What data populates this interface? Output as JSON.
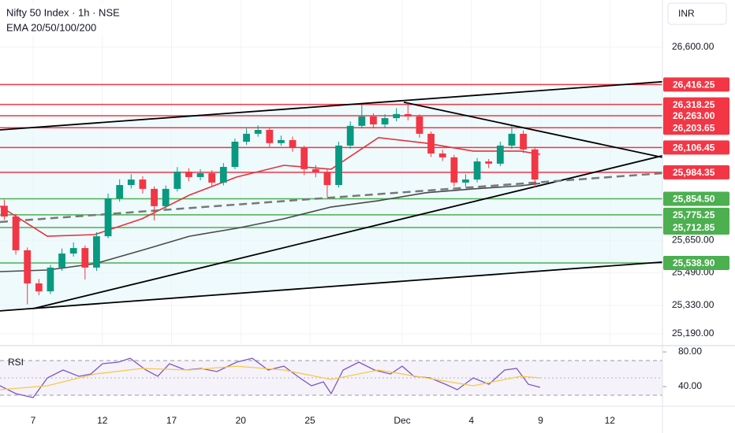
{
  "chart_data": [
    {
      "type": "candlestick",
      "title": "Nifty 50 Index · 1h · NSE",
      "subtitle": "EMA 20/50/100/200",
      "currency": "INR",
      "up_color": "#089981",
      "down_color": "#f23645",
      "x": [
        -1.25,
        -0.75,
        -0.25,
        0.25,
        0.75,
        1.25,
        1.75,
        2.25,
        2.75,
        3.25,
        3.75,
        4.25,
        4.75,
        5.25,
        5.75,
        6.25,
        6.75,
        7.25,
        7.75,
        8.25,
        8.75,
        9.25,
        9.75,
        10.25,
        10.75,
        11.25,
        11.75,
        12.25,
        12.75,
        13.25,
        13.75,
        14.25,
        14.75,
        15.25,
        15.75,
        16.25,
        16.75,
        17.25,
        17.75,
        18.25,
        18.75,
        19.25,
        19.75,
        20.25,
        20.75,
        21.25,
        21.75
      ],
      "open": [
        25820,
        25767,
        25601,
        25438,
        25399,
        25516,
        25585,
        25612,
        25516,
        25670,
        25856,
        25922,
        25949,
        25903,
        25818,
        25903,
        25988,
        25961,
        25980,
        25934,
        26011,
        26135,
        26174,
        26193,
        26128,
        26143,
        26104,
        26000,
        25985,
        25922,
        26116,
        26213,
        26259,
        26220,
        26251,
        26271,
        26259,
        26174,
        26077,
        26058,
        25934,
        25949,
        26038,
        26027,
        26116,
        26174,
        26097
      ],
      "high": [
        25850,
        25780,
        25615,
        25460,
        25530,
        25610,
        25640,
        25625,
        25690,
        25880,
        25950,
        25975,
        25965,
        25915,
        25920,
        26010,
        26005,
        26000,
        25995,
        26030,
        26150,
        26200,
        26215,
        26205,
        26165,
        26160,
        26115,
        26020,
        26000,
        26135,
        26235,
        26317,
        26275,
        26270,
        26300,
        26325,
        26270,
        26185,
        26095,
        26070,
        25975,
        26055,
        26050,
        26135,
        26213,
        26190,
        26110
      ],
      "low": [
        25750,
        25580,
        25335,
        25380,
        25385,
        25500,
        25570,
        25457,
        25500,
        25660,
        25840,
        25905,
        25880,
        25748,
        25800,
        25890,
        25940,
        25945,
        25915,
        25920,
        26000,
        26120,
        26160,
        26110,
        26115,
        26085,
        25970,
        25960,
        25864,
        25910,
        26100,
        26200,
        26200,
        26205,
        26235,
        26240,
        26155,
        26060,
        26040,
        25915,
        25915,
        25935,
        26005,
        26015,
        26100,
        26080,
        25911
      ],
      "close": [
        25767,
        25601,
        25438,
        25399,
        25516,
        25585,
        25612,
        25516,
        25670,
        25856,
        25922,
        25949,
        25903,
        25818,
        25903,
        25988,
        25961,
        25980,
        25934,
        26011,
        26135,
        26174,
        26193,
        26128,
        26143,
        26104,
        26000,
        25985,
        25922,
        26116,
        26213,
        26259,
        26220,
        26251,
        26271,
        26259,
        26174,
        26077,
        26058,
        25934,
        25949,
        26038,
        26027,
        26116,
        26174,
        26097,
        25949
      ],
      "xlim": [
        -1.436,
        27.282
      ],
      "ylim": [
        25136,
        26832
      ],
      "xticks": [
        {
          "value": 0,
          "label": "7"
        },
        {
          "value": 3,
          "label": "12"
        },
        {
          "value": 6,
          "label": "17"
        },
        {
          "value": 9,
          "label": "20"
        },
        {
          "value": 12,
          "label": "25"
        },
        {
          "value": 16,
          "label": "Dec"
        },
        {
          "value": 19,
          "label": "4"
        },
        {
          "value": 22,
          "label": "9"
        },
        {
          "value": 25,
          "label": "12"
        }
      ],
      "yticks": [
        {
          "value": 26600,
          "label": "26,600.00"
        },
        {
          "value": 25650,
          "label": "25,650.00"
        },
        {
          "value": 25490,
          "label": "25,490.00"
        },
        {
          "value": 25330,
          "label": "25,330.00"
        },
        {
          "value": 25190,
          "label": "25,190.00"
        }
      ],
      "grid": true,
      "overlays": [
        {
          "color": "#e5323e",
          "x": [
            -1.44,
            0.62,
            2.67,
            4.72,
            6.77,
            8.82,
            10.87,
            12.92,
            14.97,
            17.03,
            19.08,
            21.13,
            21.98
          ],
          "values": [
            25818,
            25670,
            25678,
            25756,
            25872,
            25961,
            26019,
            26000,
            26155,
            26128,
            26089,
            26089,
            26073
          ]
        },
        {
          "color": "#4a4a4a",
          "x": [
            -1.44,
            0.62,
            2.67,
            4.72,
            6.77,
            8.82,
            10.87,
            12.92,
            14.97,
            17.03,
            19.08,
            21.13,
            21.98
          ],
          "values": [
            25496,
            25504,
            25535,
            25601,
            25670,
            25709,
            25756,
            25814,
            25845,
            25884,
            25903,
            25918,
            25930
          ]
        }
      ],
      "levels": [
        {
          "value": 26416.25,
          "label": "26,416.25",
          "color": "#f23645"
        },
        {
          "value": 26318.25,
          "label": "26,318.25",
          "color": "#f23645"
        },
        {
          "value": 26263.0,
          "label": "26,263.00",
          "color": "#f23645"
        },
        {
          "value": 26203.65,
          "label": "26,203.65",
          "color": "#f23645"
        },
        {
          "value": 26106.45,
          "label": "26,106.45",
          "color": "#f23645"
        },
        {
          "value": 25984.35,
          "label": "25,984.35",
          "color": "#f23645"
        },
        {
          "value": 25854.5,
          "label": "25,854.50",
          "color": "#4caf50"
        },
        {
          "value": 25775.25,
          "label": "25,775.25",
          "color": "#4caf50"
        },
        {
          "value": 25712.85,
          "label": "25,712.85",
          "color": "#4caf50"
        },
        {
          "value": 25538.9,
          "label": "25,538.90",
          "color": "#4caf50"
        }
      ],
      "trendlines": [
        {
          "x": [
            -1.436,
            27.282
          ],
          "values": [
            26193,
            26430
          ],
          "color": "#000000",
          "dashed": false
        },
        {
          "x": [
            16.07,
            27.282
          ],
          "values": [
            26329,
            26058
          ],
          "color": "#000000",
          "dashed": false
        },
        {
          "x": [
            0,
            27.282
          ],
          "values": [
            25314,
            26066
          ],
          "color": "#000000",
          "dashed": false
        },
        {
          "x": [
            -1.436,
            27.282
          ],
          "values": [
            25303,
            25543
          ],
          "color": "#000000",
          "dashed": false
        },
        {
          "x": [
            -1.436,
            27.282
          ],
          "values": [
            25740,
            25980
          ],
          "color": "#787878",
          "dashed": true
        }
      ]
    },
    {
      "type": "line",
      "title": "RSI",
      "xlim": [
        -1.436,
        27.282
      ],
      "ylim": [
        18.2,
        86.4
      ],
      "yticks": [
        {
          "value": 80,
          "label": "80.00"
        },
        {
          "value": 40,
          "label": "40.00"
        }
      ],
      "band": [
        30,
        70
      ],
      "midline": 50,
      "series": [
        {
          "color": "#7e57c2",
          "x": [
            -1.44,
            -0.75,
            0,
            0.62,
            1.3,
            1.98,
            2.5,
            3.01,
            3.69,
            4.21,
            4.89,
            5.4,
            5.91,
            6.6,
            7.28,
            7.97,
            8.82,
            9.5,
            10.19,
            10.87,
            11.56,
            12.07,
            12.58,
            12.92,
            13.44,
            14.12,
            14.8,
            15.49,
            16.0,
            16.51,
            17.2,
            17.88,
            18.39,
            19.08,
            19.76,
            20.44,
            20.96,
            21.47,
            21.98
          ],
          "values": [
            40.9,
            31.8,
            27.3,
            50,
            59.1,
            51.8,
            54.5,
            66.4,
            68.2,
            72.7,
            59.1,
            51.8,
            66.4,
            59.1,
            60.9,
            57.3,
            68.2,
            72.7,
            59.1,
            63.6,
            50,
            40.9,
            45.5,
            31.8,
            59.1,
            68.2,
            59.1,
            54.5,
            63.6,
            51.8,
            50,
            42.7,
            36.4,
            50,
            42.7,
            59.1,
            60.9,
            42.7,
            39.1
          ]
        },
        {
          "color": "#f7c948",
          "x": [
            -1.44,
            0.62,
            2.67,
            4.72,
            6.77,
            8.82,
            10.87,
            12.92,
            14.97,
            17.03,
            19.08,
            21.13,
            21.98
          ],
          "values": [
            36.4,
            40.9,
            54.5,
            60.9,
            59.1,
            63.6,
            59.1,
            48.2,
            59.1,
            50,
            40.9,
            51.8,
            50
          ]
        }
      ]
    }
  ]
}
